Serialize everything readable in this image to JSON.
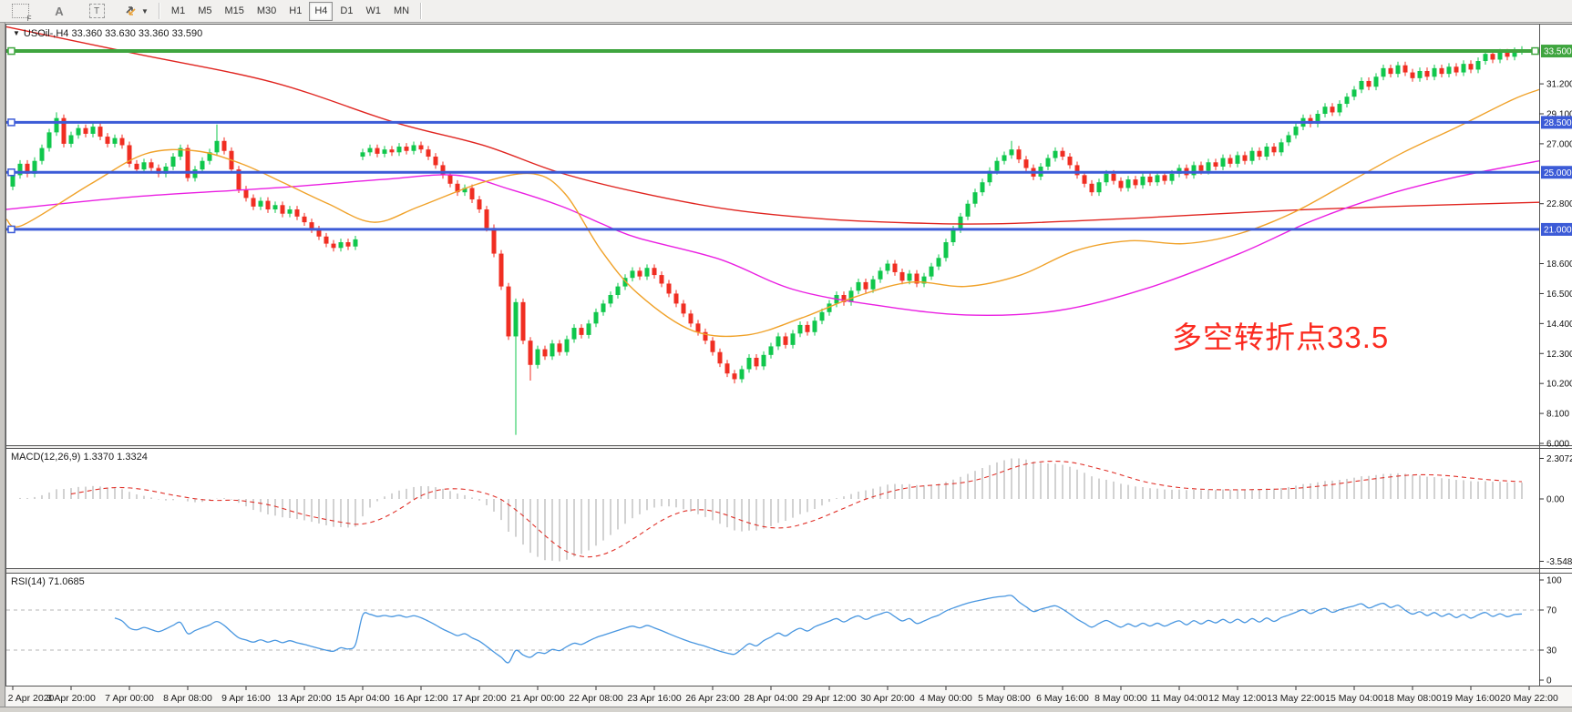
{
  "toolbar": {
    "icons": [
      "grid-f-icon",
      "font-a-icon",
      "text-label-icon",
      "arrows-icon",
      "dropdown-caret-icon"
    ],
    "timeframes": [
      {
        "label": "M1",
        "active": false
      },
      {
        "label": "M5",
        "active": false
      },
      {
        "label": "M15",
        "active": false
      },
      {
        "label": "M30",
        "active": false
      },
      {
        "label": "H1",
        "active": false
      },
      {
        "label": "H4",
        "active": true
      },
      {
        "label": "D1",
        "active": false
      },
      {
        "label": "W1",
        "active": false
      },
      {
        "label": "MN",
        "active": false
      }
    ]
  },
  "main_chart": {
    "title": "USOil-,H4  33.360 33.630 33.360 33.590",
    "annotation": "多空转折点33.5",
    "annotation_color": "#fb2b20",
    "levels": [
      {
        "label": "33.500",
        "price": 33.5,
        "color": "#3fa53f",
        "width": 4
      },
      {
        "label": "28.500",
        "price": 28.5,
        "color": "#3c5bd7",
        "width": 3
      },
      {
        "label": "25.000",
        "price": 25.0,
        "color": "#3c5bd7",
        "width": 3
      },
      {
        "label": "21.000",
        "price": 21.0,
        "color": "#3c5bd7",
        "width": 3
      }
    ],
    "y_ticks": [
      {
        "label": "31.200",
        "price": 31.2
      },
      {
        "label": "29.100",
        "price": 29.1
      },
      {
        "label": "27.000",
        "price": 27.0
      },
      {
        "label": "22.800",
        "price": 22.8
      },
      {
        "label": "18.600",
        "price": 18.6
      },
      {
        "label": "16.500",
        "price": 16.5
      },
      {
        "label": "14.400",
        "price": 14.4
      },
      {
        "label": "12.300",
        "price": 12.3
      },
      {
        "label": "10.200",
        "price": 10.2
      },
      {
        "label": "8.100",
        "price": 8.1
      },
      {
        "label": "6.000",
        "price": 6.0
      }
    ],
    "time_labels": [
      "2 Apr 2020",
      "3 Apr 20:00",
      "7 Apr 00:00",
      "8 Apr 08:00",
      "9 Apr 16:00",
      "13 Apr 20:00",
      "15 Apr 04:00",
      "16 Apr 12:00",
      "17 Apr 20:00",
      "21 Apr 00:00",
      "22 Apr 08:00",
      "23 Apr 16:00",
      "26 Apr 23:00",
      "28 Apr 04:00",
      "29 Apr 12:00",
      "30 Apr 20:00",
      "4 May 00:00",
      "5 May 08:00",
      "6 May 16:00",
      "8 May 00:00",
      "11 May 04:00",
      "12 May 12:00",
      "13 May 22:00",
      "15 May 04:00",
      "18 May 08:00",
      "19 May 16:00",
      "20 May 22:00"
    ]
  },
  "chart_data": {
    "type": "candlestick",
    "symbol": "USOil",
    "timeframe": "H4",
    "ohlc_display": {
      "open": "33.360",
      "high": "33.630",
      "low": "33.360",
      "close": "33.590"
    },
    "up_color": "#10c74c",
    "down_color": "#f02e22",
    "first_open": 24.0,
    "closes": [
      24.8,
      25.6,
      24.9,
      25.8,
      26.7,
      27.8,
      28.8,
      27.0,
      27.6,
      28.1,
      27.7,
      28.2,
      27.5,
      27.0,
      27.4,
      26.9,
      25.6,
      25.2,
      25.7,
      25.3,
      24.9,
      25.4,
      26.1,
      26.7,
      24.6,
      25.2,
      25.8,
      26.4,
      27.2,
      26.5,
      25.2,
      23.8,
      23.2,
      22.6,
      23.0,
      22.4,
      22.7,
      22.1,
      22.4,
      21.9,
      21.5,
      21.0,
      20.5,
      20.0,
      19.7,
      20.1,
      19.8,
      20.3,
      26.4,
      26.7,
      26.3,
      26.6,
      26.4,
      26.8,
      26.5,
      26.9,
      26.6,
      26.1,
      25.5,
      24.8,
      24.2,
      23.6,
      23.9,
      23.1,
      22.4,
      21.1,
      19.3,
      17.0,
      13.5,
      15.9,
      13.2,
      11.5,
      12.6,
      12.1,
      13.0,
      12.4,
      13.3,
      14.1,
      13.6,
      14.4,
      15.2,
      15.8,
      16.4,
      17.0,
      17.6,
      18.1,
      17.7,
      18.3,
      17.8,
      17.2,
      16.5,
      15.8,
      15.1,
      14.4,
      13.8,
      13.2,
      12.4,
      11.6,
      10.9,
      10.5,
      11.2,
      12.0,
      11.4,
      12.2,
      12.8,
      13.5,
      12.9,
      13.7,
      14.3,
      13.8,
      14.6,
      15.2,
      15.8,
      16.4,
      15.9,
      16.7,
      17.3,
      16.8,
      17.5,
      18.1,
      18.6,
      18.0,
      17.4,
      17.9,
      17.2,
      17.7,
      18.4,
      19.0,
      20.1,
      21.0,
      21.9,
      22.8,
      23.6,
      24.3,
      25.1,
      25.8,
      26.2,
      26.6,
      25.9,
      25.3,
      24.7,
      25.4,
      26.0,
      26.5,
      26.1,
      25.5,
      24.8,
      24.2,
      23.6,
      24.3,
      24.9,
      24.4,
      23.9,
      24.5,
      24.1,
      24.7,
      24.3,
      24.8,
      24.4,
      24.9,
      25.3,
      24.8,
      25.5,
      25.1,
      25.7,
      25.4,
      26.0,
      25.6,
      26.2,
      25.8,
      26.5,
      26.1,
      26.8,
      26.4,
      27.1,
      27.6,
      28.2,
      28.8,
      28.4,
      29.1,
      29.6,
      29.2,
      29.8,
      30.3,
      30.8,
      31.4,
      31.0,
      31.7,
      32.3,
      31.9,
      32.5,
      32.0,
      31.6,
      32.1,
      31.7,
      32.3,
      31.9,
      32.4,
      32.0,
      32.6,
      32.2,
      32.8,
      33.3,
      32.9,
      33.4,
      33.1,
      33.5,
      33.59
    ],
    "special_wicks": {
      "6": {
        "high": 29.2
      },
      "28": {
        "high": 28.35
      },
      "69": {
        "low": 6.6
      },
      "71": {
        "low": 10.4
      },
      "99": {
        "low": 10.2
      },
      "137": {
        "high": 27.2
      }
    },
    "gap_threshold": 4,
    "moving_averages": [
      {
        "name": "ma-slow-red",
        "color": "#e02520",
        "points": [
          [
            7,
            35.2
          ],
          [
            150,
            33.3
          ],
          [
            300,
            31.3
          ],
          [
            433,
            28.5
          ],
          [
            530,
            26.9
          ],
          [
            613,
            25.0
          ],
          [
            700,
            23.6
          ],
          [
            800,
            22.4
          ],
          [
            900,
            21.75
          ],
          [
            1000,
            21.45
          ],
          [
            1100,
            21.4
          ],
          [
            1250,
            21.8
          ],
          [
            1400,
            22.3
          ],
          [
            1550,
            22.65
          ],
          [
            1689,
            22.9
          ]
        ]
      },
      {
        "name": "ma-mid-magenta",
        "color": "#ea1fe2",
        "points": [
          [
            7,
            22.4
          ],
          [
            150,
            23.3
          ],
          [
            300,
            23.9
          ],
          [
            420,
            24.5
          ],
          [
            500,
            24.8
          ],
          [
            560,
            23.8
          ],
          [
            617,
            22.6
          ],
          [
            660,
            21.4
          ],
          [
            700,
            20.4
          ],
          [
            790,
            18.9
          ],
          [
            870,
            16.8
          ],
          [
            960,
            15.7
          ],
          [
            1060,
            15.0
          ],
          [
            1160,
            15.3
          ],
          [
            1260,
            16.9
          ],
          [
            1360,
            19.3
          ],
          [
            1440,
            21.6
          ],
          [
            1520,
            23.4
          ],
          [
            1600,
            24.7
          ],
          [
            1689,
            25.8
          ]
        ]
      },
      {
        "name": "ma-fast-orange",
        "color": "#f0a22a",
        "points": [
          [
            7,
            21.7
          ],
          [
            25,
            21.3
          ],
          [
            100,
            24.2
          ],
          [
            160,
            26.3
          ],
          [
            215,
            26.5
          ],
          [
            265,
            25.6
          ],
          [
            310,
            24.3
          ],
          [
            360,
            22.8
          ],
          [
            410,
            21.5
          ],
          [
            460,
            22.6
          ],
          [
            530,
            24.3
          ],
          [
            585,
            24.9
          ],
          [
            620,
            23.5
          ],
          [
            660,
            19.5
          ],
          [
            700,
            16.5
          ],
          [
            760,
            13.9
          ],
          [
            820,
            13.6
          ],
          [
            880,
            14.8
          ],
          [
            940,
            16.3
          ],
          [
            1000,
            17.3
          ],
          [
            1060,
            17.0
          ],
          [
            1120,
            17.8
          ],
          [
            1180,
            19.5
          ],
          [
            1240,
            20.2
          ],
          [
            1300,
            20.0
          ],
          [
            1360,
            20.7
          ],
          [
            1420,
            22.2
          ],
          [
            1480,
            24.3
          ],
          [
            1540,
            26.4
          ],
          [
            1600,
            28.2
          ],
          [
            1660,
            30.1
          ],
          [
            1689,
            30.8
          ]
        ]
      }
    ]
  },
  "macd": {
    "title": "MACD(12,26,9) 1.3370 1.3324",
    "params": {
      "fast": 12,
      "slow": 26,
      "signal": 9
    },
    "main_value": "1.3370",
    "signal_value": "1.3324",
    "scale": [
      {
        "label": "2.3072",
        "value": 2.3072
      },
      {
        "label": "0.00",
        "value": 0
      },
      {
        "label": "-3.5484",
        "value": -3.5484
      }
    ],
    "hist_color": "#c2c2c2",
    "signal_color": "#e03028"
  },
  "rsi": {
    "title": "RSI(14) 71.0685",
    "period": 14,
    "value": "71.0685",
    "scale": [
      {
        "label": "100",
        "value": 100
      },
      {
        "label": "70",
        "value": 70
      },
      {
        "label": "30",
        "value": 30
      },
      {
        "label": "0",
        "value": 0
      }
    ],
    "level_lines": [
      70,
      30
    ],
    "line_color": "#4896e0"
  }
}
